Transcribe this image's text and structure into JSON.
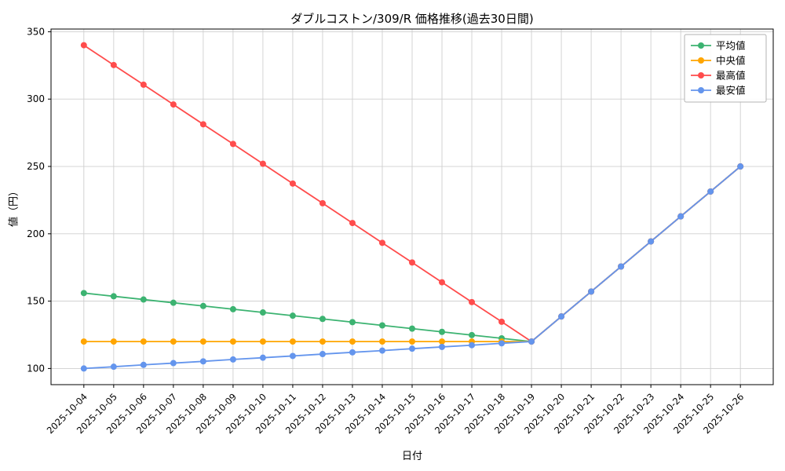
{
  "chart_data": {
    "type": "line",
    "title": "ダブルコストン/309/R 価格推移(過去30日間)",
    "xlabel": "日付",
    "ylabel": "値（円）",
    "grid": true,
    "legend_position": "upper right",
    "x_tick_rotation": 45,
    "ylim": [
      88,
      352
    ],
    "yticks": [
      100,
      150,
      200,
      250,
      300,
      350
    ],
    "categories": [
      "2025-10-04",
      "2025-10-05",
      "2025-10-06",
      "2025-10-07",
      "2025-10-08",
      "2025-10-09",
      "2025-10-10",
      "2025-10-11",
      "2025-10-12",
      "2025-10-13",
      "2025-10-14",
      "2025-10-15",
      "2025-10-16",
      "2025-10-17",
      "2025-10-18",
      "2025-10-19",
      "2025-10-20",
      "2025-10-21",
      "2025-10-22",
      "2025-10-23",
      "2025-10-24",
      "2025-10-25",
      "2025-10-26"
    ],
    "series": [
      {
        "key": "mean",
        "name": "平均値",
        "color": "#3cb371",
        "values": [
          156.0,
          153.6,
          151.2,
          148.8,
          146.4,
          144.0,
          141.6,
          139.2,
          136.8,
          134.4,
          132.0,
          129.6,
          127.2,
          124.8,
          122.4,
          120.0,
          138.6,
          157.1,
          175.7,
          194.3,
          212.9,
          231.4,
          250.0
        ]
      },
      {
        "key": "median",
        "name": "中央値",
        "color": "#ffa500",
        "values": [
          120.0,
          120.0,
          120.0,
          120.0,
          120.0,
          120.0,
          120.0,
          120.0,
          120.0,
          120.0,
          120.0,
          120.0,
          120.0,
          120.0,
          120.0,
          120.0,
          138.6,
          157.1,
          175.7,
          194.3,
          212.9,
          231.4,
          250.0
        ]
      },
      {
        "key": "max",
        "name": "最高値",
        "color": "#ff4c4c",
        "values": [
          340.0,
          325.3,
          310.7,
          296.0,
          281.3,
          266.7,
          252.0,
          237.3,
          222.7,
          208.0,
          193.3,
          178.7,
          164.0,
          149.3,
          134.7,
          120.0,
          138.6,
          157.1,
          175.7,
          194.3,
          212.9,
          231.4,
          250.0
        ]
      },
      {
        "key": "min",
        "name": "最安値",
        "color": "#6495ed",
        "values": [
          100.0,
          101.3,
          102.7,
          104.0,
          105.3,
          106.7,
          108.0,
          109.3,
          110.7,
          112.0,
          113.3,
          114.7,
          116.0,
          117.3,
          118.7,
          120.0,
          138.6,
          157.1,
          175.7,
          194.3,
          212.9,
          231.4,
          250.0
        ]
      }
    ]
  }
}
